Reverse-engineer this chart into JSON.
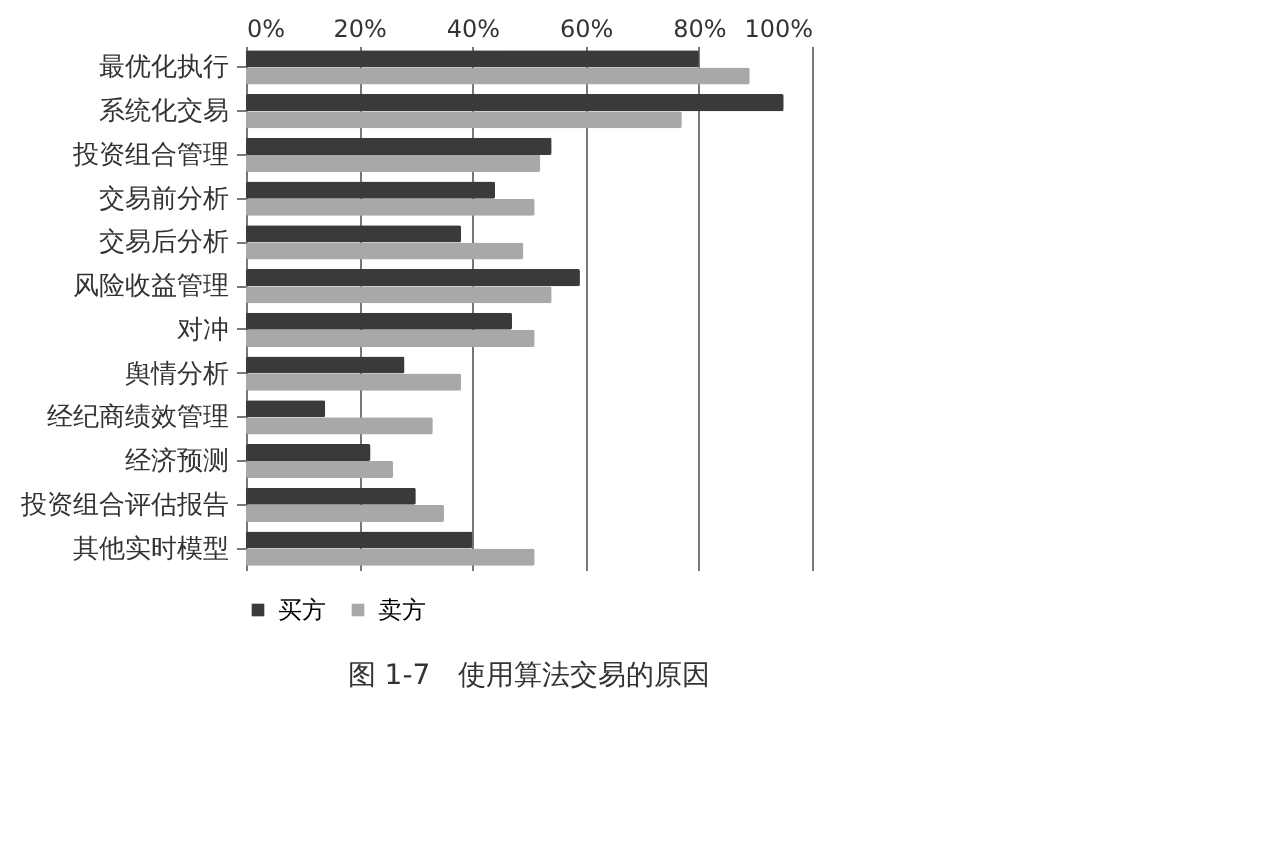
{
  "chart_data": {
    "type": "bar",
    "orientation": "horizontal",
    "title": "图 1-7　使用算法交易的原因",
    "categories": [
      "最优化执行",
      "系统化交易",
      "投资组合管理",
      "交易前分析",
      "交易后分析",
      "风险收益管理",
      "对冲",
      "舆情分析",
      "经纪商绩效管理",
      "经济预测",
      "投资组合评估报告",
      "其他实时模型"
    ],
    "series": [
      {
        "name": "买方",
        "color": "#3a3a3a",
        "values": [
          80,
          95,
          54,
          44,
          38,
          59,
          47,
          28,
          14,
          22,
          30,
          40
        ]
      },
      {
        "name": "卖方",
        "color": "#a8a8a8",
        "values": [
          89,
          77,
          52,
          51,
          49,
          54,
          51,
          38,
          33,
          26,
          35,
          51
        ]
      }
    ],
    "xlim": [
      0,
      100
    ],
    "xticks": [
      {
        "value": 0,
        "label": "0%"
      },
      {
        "value": 20,
        "label": "20%"
      },
      {
        "value": 40,
        "label": "40%"
      },
      {
        "value": 60,
        "label": "60%"
      },
      {
        "value": 80,
        "label": "80%"
      },
      {
        "value": 100,
        "label": "100%"
      }
    ],
    "grid": "x",
    "legend": "bottom"
  }
}
